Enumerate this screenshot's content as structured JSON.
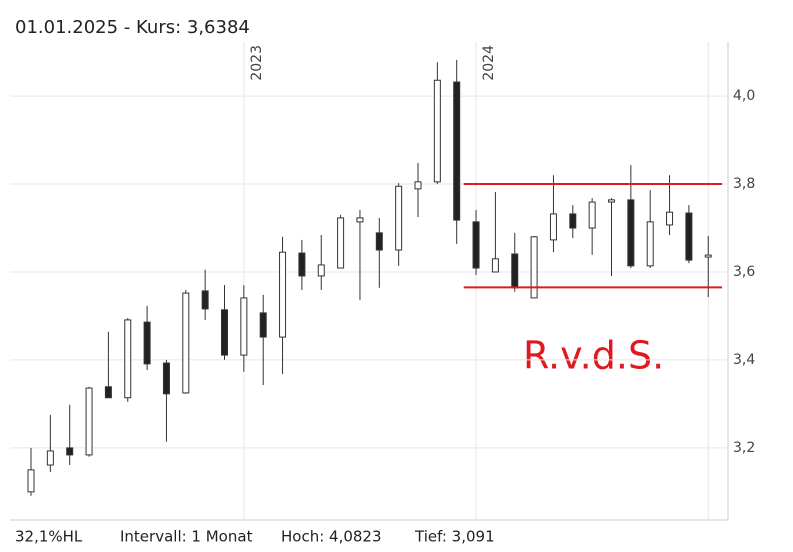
{
  "chart_data": {
    "type": "candlestick",
    "title": "01.01.2025  -  Kurs: 3,6384",
    "footer": [
      "32,1%HL",
      "Intervall: 1 Monat",
      "Hoch: 4,0823",
      "Tief: 3,091"
    ],
    "annotation": "R.v.d.S.",
    "categories": [
      null,
      null,
      null,
      null,
      null,
      null,
      null,
      null,
      null,
      null,
      null,
      "2023",
      null,
      null,
      null,
      null,
      null,
      null,
      null,
      null,
      null,
      null,
      null,
      "2024",
      null,
      null,
      null,
      null,
      null,
      null,
      null,
      null,
      null,
      null,
      null,
      null
    ],
    "open": [
      3.1,
      3.161,
      3.2,
      3.184,
      3.339,
      3.314,
      3.486,
      3.393,
      3.325,
      3.557,
      3.514,
      3.411,
      3.507,
      3.452,
      3.643,
      3.591,
      3.609,
      3.714,
      3.689,
      3.65,
      3.789,
      3.805,
      4.032,
      3.714,
      3.6,
      3.641,
      3.541,
      3.673,
      3.732,
      3.7,
      3.759,
      3.764,
      3.614,
      3.707,
      3.734,
      3.634
    ],
    "high": [
      3.2,
      3.275,
      3.298,
      3.339,
      3.464,
      3.495,
      3.523,
      3.4,
      3.559,
      3.605,
      3.57,
      3.57,
      3.548,
      3.68,
      3.673,
      3.684,
      3.73,
      3.741,
      3.723,
      3.802,
      3.848,
      4.077,
      4.0823,
      3.741,
      3.782,
      3.689,
      3.682,
      3.82,
      3.752,
      3.768,
      3.768,
      3.843,
      3.786,
      3.82,
      3.752,
      3.682
    ],
    "low": [
      3.091,
      3.145,
      3.161,
      3.18,
      3.314,
      3.305,
      3.377,
      3.214,
      3.323,
      3.491,
      3.4,
      3.373,
      3.343,
      3.368,
      3.559,
      3.559,
      3.609,
      3.536,
      3.564,
      3.614,
      3.725,
      3.8,
      3.664,
      3.593,
      3.6,
      3.555,
      3.541,
      3.645,
      3.677,
      3.639,
      3.591,
      3.609,
      3.609,
      3.684,
      3.62,
      3.543
    ],
    "close": [
      3.15,
      3.193,
      3.184,
      3.336,
      3.314,
      3.491,
      3.391,
      3.323,
      3.552,
      3.516,
      3.411,
      3.541,
      3.452,
      3.645,
      3.591,
      3.616,
      3.723,
      3.723,
      3.65,
      3.795,
      3.805,
      4.036,
      3.718,
      3.609,
      3.63,
      3.564,
      3.68,
      3.732,
      3.7,
      3.759,
      3.764,
      3.614,
      3.714,
      3.736,
      3.627,
      3.6384
    ],
    "up_color": "#ffffff",
    "down_color": "#222222",
    "hlines": [
      {
        "value": 3.8,
        "from": 22,
        "color": "#e0191f"
      },
      {
        "value": 3.565,
        "from": 22,
        "color": "#e0191f"
      }
    ],
    "ylim": [
      3.036,
      4.123
    ],
    "yticks": [
      {
        "value": 3.2,
        "label": "3,2"
      },
      {
        "value": 3.4,
        "label": "3,4"
      },
      {
        "value": 3.6,
        "label": "3,6"
      },
      {
        "value": 3.8,
        "label": "3,8"
      },
      {
        "value": 4.0,
        "label": "4,0"
      }
    ],
    "grid": true
  }
}
